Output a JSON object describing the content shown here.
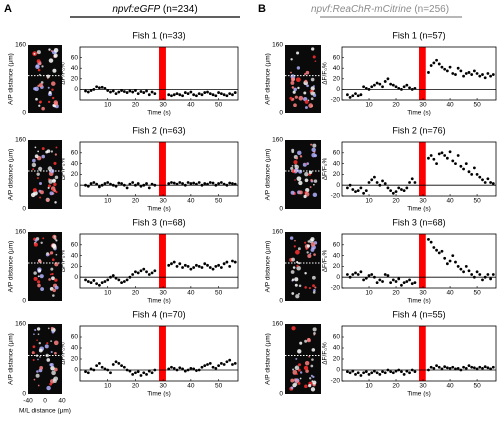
{
  "figure": {
    "panels": [
      {
        "letter": "A",
        "genotype": "npvf:eGFP",
        "n": "(n=234)",
        "color": "#000000"
      },
      {
        "letter": "B",
        "genotype": "npvf:ReaChR-mCitrine",
        "n": "(n=256)",
        "color": "#8c8c8c"
      }
    ],
    "image": {
      "ylabel": "A/P distance (µm)",
      "ylim": [
        0,
        160
      ],
      "yticks": [
        0,
        160
      ],
      "xlabel": "M/L distance (µm)",
      "xlim": [
        -40,
        40
      ],
      "xticks": [
        -40,
        0,
        40
      ]
    }
  },
  "chart_data": [
    {
      "type": "scatter",
      "title": "Fish 1 (n=33)",
      "title_color": "#000000",
      "xlabel": "Time (s)",
      "ylabel": "ΔF/F₀%",
      "x": [
        2,
        3,
        4,
        5,
        6,
        7,
        8,
        9,
        10,
        11,
        12,
        13,
        14,
        15,
        16,
        17,
        18,
        19,
        20,
        21,
        22,
        23,
        24,
        25,
        26,
        27,
        32,
        33,
        34,
        35,
        36,
        37,
        38,
        39,
        40,
        41,
        42,
        43,
        44,
        45,
        46,
        47,
        48,
        49,
        50,
        51,
        52,
        53,
        54,
        55,
        56
      ],
      "values": [
        -3,
        -5,
        -2,
        0,
        5,
        3,
        4,
        2,
        -2,
        -5,
        -3,
        -8,
        -5,
        -2,
        -4,
        -6,
        -3,
        -5,
        -2,
        -8,
        -4,
        -6,
        -3,
        -10,
        -5,
        -8,
        -10,
        -12,
        -10,
        -8,
        -10,
        -12,
        -6,
        -8,
        -5,
        -10,
        -12,
        -8,
        -10,
        -6,
        -5,
        -8,
        -10,
        -12,
        -6,
        -8,
        -10,
        -12,
        -8,
        -10,
        -6
      ],
      "color": "#000000",
      "stimulus": [
        28.5,
        31
      ],
      "stimulus_color": "#ff0000",
      "xlim": [
        0,
        57
      ],
      "ylim": [
        -20,
        80
      ],
      "xticks": [
        10,
        20,
        30,
        40,
        50
      ],
      "yticks": [
        0,
        20,
        40,
        60
      ]
    },
    {
      "type": "scatter",
      "title": "Fish 2 (n=63)",
      "title_color": "#000000",
      "xlabel": "Time (s)",
      "ylabel": "ΔF/F₀%",
      "x": [
        2,
        3,
        4,
        5,
        6,
        7,
        8,
        9,
        10,
        11,
        12,
        13,
        14,
        15,
        16,
        17,
        18,
        19,
        20,
        21,
        22,
        23,
        24,
        25,
        26,
        27,
        32,
        33,
        34,
        35,
        36,
        37,
        38,
        39,
        40,
        41,
        42,
        43,
        44,
        45,
        46,
        47,
        48,
        49,
        50,
        51,
        52,
        53,
        54,
        55,
        56
      ],
      "values": [
        0,
        -2,
        3,
        5,
        2,
        -3,
        0,
        3,
        5,
        2,
        0,
        -2,
        4,
        3,
        0,
        -5,
        2,
        5,
        0,
        3,
        -2,
        0,
        3,
        -5,
        2,
        0,
        3,
        5,
        4,
        2,
        5,
        3,
        0,
        5,
        3,
        4,
        2,
        5,
        0,
        3,
        2,
        5,
        4,
        0,
        3,
        5,
        2,
        0,
        4,
        3,
        2
      ],
      "color": "#000000",
      "stimulus": [
        28.5,
        31
      ],
      "stimulus_color": "#ff0000",
      "xlim": [
        0,
        57
      ],
      "ylim": [
        -20,
        80
      ],
      "xticks": [
        10,
        20,
        30,
        40,
        50
      ],
      "yticks": [
        0,
        20,
        40,
        60
      ]
    },
    {
      "type": "scatter",
      "title": "Fish 3 (n=68)",
      "title_color": "#000000",
      "xlabel": "Time (s)",
      "ylabel": "ΔF/F₀%",
      "x": [
        2,
        3,
        4,
        5,
        6,
        7,
        8,
        9,
        10,
        11,
        12,
        13,
        14,
        15,
        16,
        17,
        18,
        19,
        20,
        21,
        22,
        23,
        24,
        25,
        26,
        27,
        32,
        33,
        34,
        35,
        36,
        37,
        38,
        39,
        40,
        41,
        42,
        43,
        44,
        45,
        46,
        47,
        48,
        49,
        50,
        51,
        52,
        53,
        54,
        55,
        56
      ],
      "values": [
        -5,
        -8,
        -10,
        -6,
        -12,
        -15,
        -10,
        -8,
        -5,
        0,
        3,
        -2,
        -5,
        -10,
        -8,
        -5,
        0,
        5,
        10,
        8,
        12,
        15,
        10,
        5,
        8,
        12,
        22,
        25,
        28,
        20,
        25,
        18,
        22,
        20,
        15,
        18,
        22,
        20,
        18,
        25,
        22,
        18,
        15,
        20,
        22,
        18,
        25,
        28,
        20,
        30,
        28
      ],
      "color": "#000000",
      "stimulus": [
        28.5,
        31
      ],
      "stimulus_color": "#ff0000",
      "xlim": [
        0,
        57
      ],
      "ylim": [
        -20,
        80
      ],
      "xticks": [
        10,
        20,
        30,
        40,
        50
      ],
      "yticks": [
        0,
        20,
        40,
        60
      ]
    },
    {
      "type": "scatter",
      "title": "Fish 4 (n=70)",
      "title_color": "#000000",
      "xlabel": "Time (s)",
      "ylabel": "ΔF/F₀%",
      "x": [
        2,
        3,
        4,
        5,
        6,
        7,
        8,
        9,
        10,
        11,
        12,
        13,
        14,
        15,
        16,
        17,
        18,
        19,
        20,
        21,
        22,
        23,
        24,
        25,
        26,
        27,
        32,
        33,
        34,
        35,
        36,
        37,
        38,
        39,
        40,
        41,
        42,
        43,
        44,
        45,
        46,
        47,
        48,
        49,
        50,
        51,
        52,
        53,
        54,
        55,
        56
      ],
      "values": [
        -3,
        -5,
        2,
        0,
        8,
        12,
        5,
        2,
        0,
        -5,
        10,
        15,
        12,
        8,
        5,
        0,
        -2,
        -8,
        -5,
        -3,
        -10,
        -5,
        -8,
        -2,
        -5,
        0,
        2,
        5,
        3,
        0,
        4,
        2,
        -2,
        0,
        3,
        2,
        -1,
        0,
        5,
        8,
        10,
        12,
        5,
        3,
        8,
        12,
        10,
        15,
        18,
        10,
        12
      ],
      "color": "#000000",
      "stimulus": [
        28.5,
        31
      ],
      "stimulus_color": "#ff0000",
      "xlim": [
        0,
        57
      ],
      "ylim": [
        -20,
        80
      ],
      "xticks": [
        10,
        20,
        30,
        40,
        50
      ],
      "yticks": [
        0,
        20,
        40,
        60
      ]
    },
    {
      "type": "scatter",
      "title": "Fish 1 (n=57)",
      "title_color": "#8c8c8c",
      "xlabel": "Time (s)",
      "ylabel": "ΔF/F₀%",
      "x": [
        2,
        3,
        4,
        5,
        6,
        7,
        8,
        9,
        10,
        11,
        12,
        13,
        14,
        15,
        16,
        17,
        18,
        19,
        20,
        21,
        22,
        23,
        24,
        25,
        26,
        27,
        32,
        33,
        34,
        35,
        36,
        37,
        38,
        39,
        40,
        41,
        42,
        43,
        44,
        45,
        46,
        47,
        48,
        49,
        50,
        51,
        52,
        53,
        54,
        55,
        56
      ],
      "values": [
        -10,
        -15,
        -12,
        -8,
        -12,
        -10,
        5,
        2,
        0,
        5,
        8,
        12,
        10,
        5,
        15,
        20,
        10,
        8,
        5,
        2,
        0,
        5,
        8,
        3,
        0,
        2,
        32,
        45,
        50,
        55,
        48,
        42,
        38,
        35,
        42,
        30,
        28,
        40,
        35,
        25,
        30,
        32,
        28,
        35,
        30,
        25,
        28,
        22,
        30,
        25,
        28
      ],
      "color": "#000000",
      "stimulus": [
        28.5,
        31
      ],
      "stimulus_color": "#ff0000",
      "xlim": [
        0,
        57
      ],
      "ylim": [
        -20,
        80
      ],
      "xticks": [
        10,
        20,
        30,
        40,
        50
      ],
      "yticks": [
        -20,
        0,
        20,
        40,
        60
      ]
    },
    {
      "type": "scatter",
      "title": "Fish 2 (n=76)",
      "title_color": "#8c8c8c",
      "xlabel": "Time (s)",
      "ylabel": "ΔF/F₀%",
      "x": [
        2,
        3,
        4,
        5,
        6,
        7,
        8,
        9,
        10,
        11,
        12,
        13,
        14,
        15,
        16,
        17,
        18,
        19,
        20,
        21,
        22,
        23,
        24,
        25,
        26,
        27,
        32,
        33,
        34,
        35,
        36,
        37,
        38,
        39,
        40,
        41,
        42,
        43,
        44,
        45,
        46,
        47,
        48,
        49,
        50,
        51,
        52,
        53,
        54,
        55,
        56
      ],
      "values": [
        -5,
        0,
        -8,
        -12,
        -10,
        -5,
        -15,
        -10,
        5,
        10,
        15,
        5,
        0,
        8,
        3,
        -5,
        -10,
        -15,
        -12,
        -5,
        -8,
        -10,
        -5,
        5,
        12,
        5,
        50,
        55,
        48,
        40,
        58,
        60,
        55,
        50,
        62,
        45,
        40,
        55,
        35,
        30,
        40,
        25,
        20,
        32,
        20,
        15,
        10,
        5,
        12,
        5,
        3
      ],
      "color": "#000000",
      "stimulus": [
        28.5,
        31
      ],
      "stimulus_color": "#ff0000",
      "xlim": [
        0,
        57
      ],
      "ylim": [
        -20,
        80
      ],
      "xticks": [
        10,
        20,
        30,
        40,
        50
      ],
      "yticks": [
        -20,
        0,
        20,
        40,
        60
      ]
    },
    {
      "type": "scatter",
      "title": "Fish 3 (n=68)",
      "title_color": "#8c8c8c",
      "xlabel": "Time (s)",
      "ylabel": "ΔF/F₀%",
      "x": [
        2,
        3,
        4,
        5,
        6,
        7,
        8,
        9,
        10,
        11,
        12,
        13,
        14,
        15,
        16,
        17,
        18,
        19,
        20,
        21,
        22,
        23,
        24,
        25,
        26,
        27,
        32,
        33,
        34,
        35,
        36,
        37,
        38,
        39,
        40,
        41,
        42,
        43,
        44,
        45,
        46,
        47,
        48,
        49,
        50,
        51,
        52,
        53,
        54,
        55,
        56
      ],
      "values": [
        5,
        0,
        5,
        8,
        5,
        10,
        -5,
        -2,
        3,
        5,
        0,
        -10,
        -5,
        -8,
        5,
        3,
        -10,
        -5,
        -8,
        -3,
        -15,
        -10,
        -8,
        -5,
        -12,
        -10,
        70,
        65,
        55,
        50,
        45,
        48,
        35,
        25,
        30,
        40,
        28,
        20,
        15,
        10,
        20,
        12,
        5,
        0,
        10,
        5,
        -5,
        0,
        5,
        -3,
        5
      ],
      "color": "#000000",
      "stimulus": [
        28.5,
        31
      ],
      "stimulus_color": "#ff0000",
      "xlim": [
        0,
        57
      ],
      "ylim": [
        -20,
        80
      ],
      "xticks": [
        10,
        20,
        30,
        40,
        50
      ],
      "yticks": [
        -20,
        0,
        20,
        40,
        60
      ]
    },
    {
      "type": "scatter",
      "title": "Fish 4 (n=55)",
      "title_color": "#8c8c8c",
      "xlabel": "Time (s)",
      "ylabel": "ΔF/F₀%",
      "x": [
        2,
        3,
        4,
        5,
        6,
        7,
        8,
        9,
        10,
        11,
        12,
        13,
        14,
        15,
        16,
        17,
        18,
        19,
        20,
        21,
        22,
        23,
        24,
        25,
        26,
        27,
        32,
        33,
        34,
        35,
        36,
        37,
        38,
        39,
        40,
        41,
        42,
        43,
        44,
        45,
        46,
        47,
        48,
        49,
        50,
        51,
        52,
        53,
        54,
        55,
        56
      ],
      "values": [
        -3,
        -5,
        -2,
        -8,
        -5,
        -10,
        -5,
        -3,
        -8,
        -5,
        -2,
        -5,
        -8,
        -3,
        -5,
        0,
        -3,
        -5,
        -2,
        0,
        -3,
        -8,
        -2,
        -5,
        0,
        -3,
        0,
        5,
        3,
        8,
        5,
        2,
        6,
        4,
        3,
        5,
        2,
        3,
        0,
        5,
        3,
        8,
        5,
        4,
        2,
        5,
        3,
        6,
        4,
        2,
        5
      ],
      "color": "#000000",
      "stimulus": [
        28.5,
        31
      ],
      "stimulus_color": "#ff0000",
      "xlim": [
        0,
        57
      ],
      "ylim": [
        -20,
        80
      ],
      "xticks": [
        10,
        20,
        30,
        40,
        50
      ],
      "yticks": [
        -20,
        0,
        20,
        40,
        60
      ]
    }
  ]
}
